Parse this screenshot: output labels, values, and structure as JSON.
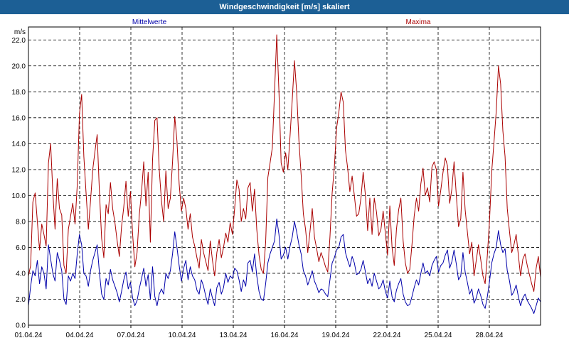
{
  "window": {
    "title": "Windgeschwindigkeit [m/s] skaliert"
  },
  "colors": {
    "titlebar": "#1c5f95",
    "mean": "#0000aa",
    "max": "#aa0000",
    "grid": "#000000"
  },
  "chart_data": {
    "type": "line",
    "title": "Windgeschwindigkeit [m/s] skaliert",
    "ylabel": "m/s",
    "xlabel": "",
    "ylim": [
      0,
      23.0
    ],
    "yticks": [
      "0.0",
      "2.0",
      "4.0",
      "6.0",
      "8.0",
      "10.0",
      "12.0",
      "14.0",
      "16.0",
      "18.0",
      "20.0",
      "22.0"
    ],
    "xticks": [
      "01.04.24",
      "04.04.24",
      "07.04.24",
      "10.04.24",
      "13.04.24",
      "16.04.24",
      "19.04.24",
      "22.04.24",
      "25.04.24",
      "28.04.24"
    ],
    "xlim_days": [
      0,
      30
    ],
    "grid": true,
    "legend_placement": "top",
    "series": [
      {
        "name": "Mittelwerte",
        "color": "#0000aa",
        "values": [
          1.5,
          3.0,
          4.2,
          3.8,
          5.0,
          3.2,
          4.5,
          4.0,
          2.8,
          6.2,
          5.1,
          4.0,
          3.4,
          5.6,
          5.0,
          4.2,
          2.0,
          1.6,
          3.8,
          3.4,
          4.0,
          3.6,
          5.5,
          7.0,
          6.2,
          4.0,
          3.8,
          3.0,
          4.2,
          5.0,
          5.6,
          6.2,
          4.1,
          2.4,
          2.0,
          3.6,
          3.1,
          4.3,
          3.5,
          3.0,
          2.5,
          1.8,
          2.6,
          3.5,
          4.1,
          2.8,
          3.3,
          2.1,
          1.5,
          1.9,
          2.8,
          3.6,
          4.4,
          3.0,
          3.9,
          2.0,
          4.5,
          2.2,
          1.5,
          2.4,
          2.8,
          2.4,
          4.0,
          3.6,
          4.2,
          5.5,
          7.2,
          6.0,
          4.6,
          3.4,
          4.4,
          5.0,
          3.5,
          4.5,
          3.8,
          3.5,
          2.7,
          2.4,
          3.5,
          3.0,
          2.2,
          1.6,
          2.8,
          2.1,
          1.5,
          2.9,
          3.3,
          2.4,
          2.9,
          4.0,
          3.3,
          3.8,
          3.6,
          4.4,
          4.2,
          3.5,
          2.6,
          3.5,
          3.0,
          4.8,
          5.0,
          4.1,
          5.5,
          3.8,
          2.6,
          2.0,
          1.9,
          3.2,
          4.8,
          5.5,
          6.0,
          6.5,
          8.2,
          7.0,
          5.1,
          5.4,
          6.0,
          5.1,
          6.1,
          6.8,
          8.0,
          7.2,
          6.2,
          5.5,
          4.2,
          3.8,
          3.1,
          3.6,
          4.2,
          3.4,
          3.0,
          2.5,
          2.8,
          2.7,
          2.4,
          2.2,
          3.5,
          4.8,
          5.2,
          5.8,
          6.0,
          6.8,
          7.0,
          5.6,
          5.0,
          4.5,
          5.3,
          4.8,
          3.9,
          4.0,
          4.3,
          5.0,
          4.1,
          3.2,
          3.6,
          3.0,
          4.0,
          3.4,
          2.8,
          3.0,
          3.5,
          2.6,
          2.1,
          3.4,
          2.2,
          1.8,
          2.7,
          3.2,
          3.6,
          2.4,
          1.8,
          1.5,
          1.6,
          2.2,
          2.9,
          3.5,
          3.1,
          4.0,
          4.8,
          4.0,
          4.2,
          3.8,
          4.6,
          5.0,
          5.3,
          4.1,
          4.6,
          4.8,
          5.4,
          5.8,
          4.4,
          4.9,
          5.8,
          4.7,
          3.5,
          3.8,
          5.6,
          4.1,
          3.3,
          2.4,
          2.8,
          1.7,
          2.1,
          2.8,
          2.3,
          1.6,
          1.3,
          2.2,
          3.4,
          4.8,
          5.5,
          6.0,
          7.3,
          6.2,
          5.6,
          5.9,
          4.2,
          3.4,
          2.3,
          2.6,
          3.1,
          2.2,
          1.5,
          2.1,
          2.4,
          1.9,
          1.6,
          1.3,
          0.9,
          1.5,
          2.1,
          1.8
        ]
      },
      {
        "name": "Maxima",
        "color": "#aa0000",
        "values": [
          3.8,
          4.6,
          9.5,
          10.2,
          8.0,
          5.8,
          7.8,
          7.0,
          6.1,
          12.5,
          14.0,
          10.2,
          7.4,
          11.3,
          9.0,
          8.5,
          4.6,
          4.0,
          7.4,
          8.4,
          9.4,
          7.8,
          10.8,
          16.3,
          17.8,
          13.0,
          10.2,
          7.4,
          9.6,
          12.0,
          13.4,
          14.7,
          10.4,
          6.7,
          5.2,
          9.3,
          8.6,
          11.0,
          9.0,
          7.9,
          6.5,
          5.3,
          7.6,
          9.1,
          11.1,
          8.4,
          10.3,
          7.0,
          4.5,
          5.6,
          8.5,
          10.3,
          12.6,
          9.2,
          11.8,
          6.4,
          12.8,
          15.8,
          16.0,
          12.0,
          9.6,
          8.0,
          11.9,
          9.0,
          9.8,
          12.6,
          16.1,
          14.2,
          10.9,
          8.8,
          9.8,
          9.0,
          7.4,
          8.6,
          6.8,
          6.1,
          5.2,
          4.4,
          6.6,
          5.6,
          4.9,
          4.2,
          6.5,
          5.0,
          3.8,
          5.6,
          6.6,
          5.2,
          6.0,
          7.1,
          6.4,
          7.9,
          7.0,
          9.0,
          11.2,
          10.5,
          8.0,
          9.0,
          8.2,
          10.6,
          11.0,
          8.8,
          10.5,
          7.4,
          5.4,
          4.3,
          4.0,
          6.4,
          11.4,
          12.5,
          13.7,
          18.0,
          22.4,
          18.0,
          12.5,
          11.8,
          13.3,
          12.0,
          14.6,
          17.4,
          20.4,
          18.0,
          14.2,
          11.6,
          8.6,
          7.4,
          5.6,
          7.2,
          9.0,
          6.8,
          5.9,
          4.9,
          5.6,
          5.1,
          4.5,
          4.1,
          6.8,
          10.2,
          12.2,
          15.2,
          16.4,
          18.0,
          17.2,
          13.5,
          12.1,
          10.3,
          11.5,
          10.0,
          8.4,
          8.6,
          9.8,
          11.8,
          10.0,
          7.3,
          9.8,
          7.0,
          9.8,
          8.7,
          6.9,
          7.4,
          8.8,
          7.1,
          5.4,
          9.2,
          6.0,
          4.6,
          7.4,
          8.9,
          9.8,
          6.5,
          4.8,
          4.0,
          4.3,
          6.2,
          8.4,
          9.8,
          8.8,
          10.9,
          12.1,
          10.0,
          10.6,
          9.5,
          12.2,
          12.6,
          12.0,
          9.2,
          10.4,
          11.8,
          12.9,
          12.3,
          9.4,
          10.5,
          12.6,
          10.0,
          7.6,
          8.2,
          11.8,
          8.9,
          7.2,
          5.5,
          6.4,
          3.8,
          5.0,
          6.2,
          5.1,
          3.8,
          3.2,
          5.4,
          8.1,
          11.9,
          14.1,
          16.5,
          20.0,
          18.6,
          15.0,
          13.0,
          9.0,
          7.2,
          5.6,
          6.2,
          7.0,
          5.4,
          3.8,
          5.1,
          5.5,
          4.6,
          3.9,
          3.2,
          2.6,
          4.4,
          5.3,
          3.7
        ]
      }
    ]
  }
}
